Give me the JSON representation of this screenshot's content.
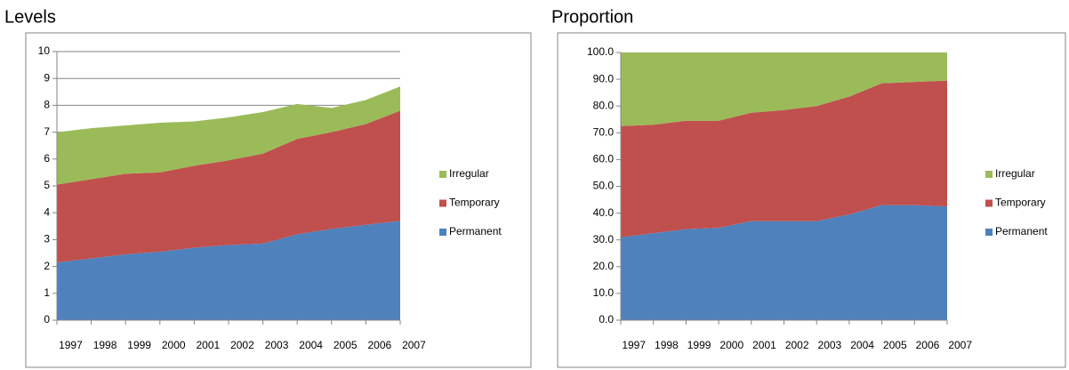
{
  "chart_data": [
    {
      "type": "stacked_area",
      "title": "Levels",
      "categories": [
        "1997",
        "1998",
        "1999",
        "2000",
        "2001",
        "2002",
        "2003",
        "2004",
        "2005",
        "2006",
        "2007"
      ],
      "series": [
        {
          "name": "Permanent",
          "color": "#4f81bd",
          "values": [
            2.15,
            2.3,
            2.45,
            2.55,
            2.7,
            2.8,
            2.85,
            3.2,
            3.4,
            3.55,
            3.7
          ]
        },
        {
          "name": "Temporary",
          "color": "#c0504d",
          "values": [
            2.9,
            2.95,
            3.0,
            2.95,
            3.05,
            3.15,
            3.35,
            3.55,
            3.6,
            3.75,
            4.1
          ]
        },
        {
          "name": "Irregular",
          "color": "#9bbb59",
          "values": [
            1.95,
            1.9,
            1.8,
            1.85,
            1.65,
            1.6,
            1.55,
            1.3,
            0.9,
            0.9,
            0.9
          ]
        }
      ],
      "ylim": [
        0,
        10
      ],
      "yticks": [
        0,
        1,
        2,
        3,
        4,
        5,
        6,
        7,
        8,
        9,
        10
      ],
      "grid": true
    },
    {
      "type": "stacked_area",
      "title": "Proportion",
      "categories": [
        "1997",
        "1998",
        "1999",
        "2000",
        "2001",
        "2002",
        "2003",
        "2004",
        "2005",
        "2006",
        "2007"
      ],
      "series": [
        {
          "name": "Permanent",
          "color": "#4f81bd",
          "values": [
            31,
            32.5,
            34,
            34.5,
            37,
            37,
            37,
            39.5,
            43,
            43,
            42.5
          ]
        },
        {
          "name": "Temporary",
          "color": "#c0504d",
          "values": [
            41.5,
            40.5,
            40.5,
            40,
            40.5,
            41.5,
            43,
            44,
            45.5,
            46,
            47
          ]
        },
        {
          "name": "Irregular",
          "color": "#9bbb59",
          "values": [
            27.5,
            27,
            25.5,
            25.5,
            22.5,
            21.5,
            20,
            16.5,
            11.5,
            11,
            10.5
          ]
        }
      ],
      "ylim": [
        0,
        100
      ],
      "yticks": [
        {
          "value": 0,
          "label": "0.0"
        },
        {
          "value": 10,
          "label": "10.0"
        },
        {
          "value": 20,
          "label": "20.0"
        },
        {
          "value": 30,
          "label": "30.0"
        },
        {
          "value": 40,
          "label": "40.0"
        },
        {
          "value": 50,
          "label": "50.0"
        },
        {
          "value": 60,
          "label": "60.0"
        },
        {
          "value": 70,
          "label": "70.0"
        },
        {
          "value": 80,
          "label": "80.0"
        },
        {
          "value": 90,
          "label": "90.0"
        },
        {
          "value": 100,
          "label": "100.0"
        }
      ],
      "grid": false
    }
  ]
}
